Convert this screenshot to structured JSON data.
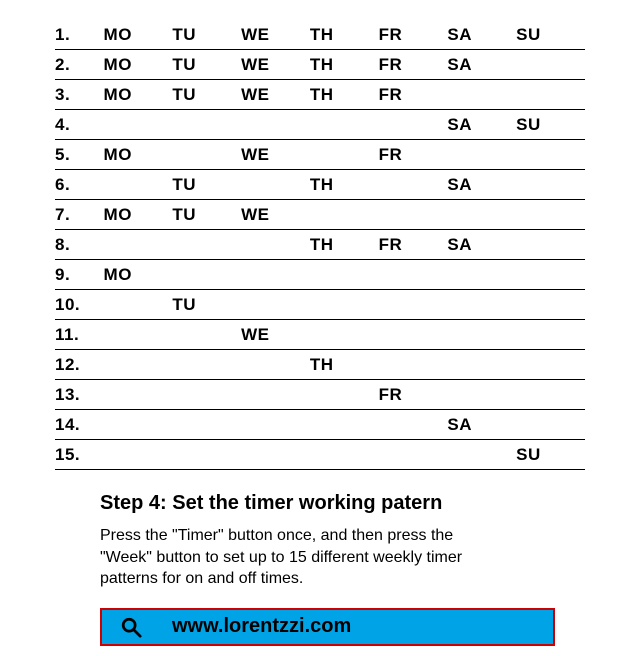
{
  "table": {
    "type": "table",
    "columns": [
      "index",
      "MO",
      "TU",
      "WE",
      "TH",
      "FR",
      "SA",
      "SU"
    ],
    "font_size": 17,
    "font_weight": 600,
    "border_color": "#000000",
    "background_color": "#ffffff",
    "rows": [
      {
        "i": "1.",
        "MO": "MO",
        "TU": "TU",
        "WE": "WE",
        "TH": "TH",
        "FR": "FR",
        "SA": "SA",
        "SU": "SU"
      },
      {
        "i": "2.",
        "MO": "MO",
        "TU": "TU",
        "WE": "WE",
        "TH": "TH",
        "FR": "FR",
        "SA": "SA",
        "SU": ""
      },
      {
        "i": "3.",
        "MO": "MO",
        "TU": "TU",
        "WE": "WE",
        "TH": "TH",
        "FR": "FR",
        "SA": "",
        "SU": ""
      },
      {
        "i": "4.",
        "MO": "",
        "TU": "",
        "WE": "",
        "TH": "",
        "FR": "",
        "SA": "SA",
        "SU": "SU"
      },
      {
        "i": "5.",
        "MO": "MO",
        "TU": "",
        "WE": "WE",
        "TH": "",
        "FR": "FR",
        "SA": "",
        "SU": ""
      },
      {
        "i": "6.",
        "MO": "",
        "TU": "TU",
        "WE": "",
        "TH": "TH",
        "FR": "",
        "SA": "SA",
        "SU": ""
      },
      {
        "i": "7.",
        "MO": "MO",
        "TU": "TU",
        "WE": "WE",
        "TH": "",
        "FR": "",
        "SA": "",
        "SU": ""
      },
      {
        "i": "8.",
        "MO": "",
        "TU": "",
        "WE": "",
        "TH": "TH",
        "FR": "FR",
        "SA": "SA",
        "SU": ""
      },
      {
        "i": "9.",
        "MO": "MO",
        "TU": "",
        "WE": "",
        "TH": "",
        "FR": "",
        "SA": "",
        "SU": ""
      },
      {
        "i": "10.",
        "MO": "",
        "TU": "TU",
        "WE": "",
        "TH": "",
        "FR": "",
        "SA": "",
        "SU": ""
      },
      {
        "i": "11.",
        "MO": "",
        "TU": "",
        "WE": "WE",
        "TH": "",
        "FR": "",
        "SA": "",
        "SU": ""
      },
      {
        "i": "12.",
        "MO": "",
        "TU": "",
        "WE": "",
        "TH": "TH",
        "FR": "",
        "SA": "",
        "SU": ""
      },
      {
        "i": "13.",
        "MO": "",
        "TU": "",
        "WE": "",
        "TH": "",
        "FR": "FR",
        "SA": "",
        "SU": ""
      },
      {
        "i": "14.",
        "MO": "",
        "TU": "",
        "WE": "",
        "TH": "",
        "FR": "",
        "SA": "SA",
        "SU": ""
      },
      {
        "i": "15.",
        "MO": "",
        "TU": "",
        "WE": "",
        "TH": "",
        "FR": "",
        "SA": "",
        "SU": "SU"
      }
    ]
  },
  "step": {
    "title": "Step 4: Set the timer working patern",
    "body": "Press the \"Timer\" button once, and then press the \"Week\" button to set up to 15 different weekly timer patterns for on and off times.",
    "title_fontsize": 20,
    "body_fontsize": 16
  },
  "banner": {
    "background_color": "#00a3e6",
    "border_color": "#d10000",
    "icon": "search-icon",
    "url": "www.lorentzzi.com",
    "url_fontsize": 20
  }
}
